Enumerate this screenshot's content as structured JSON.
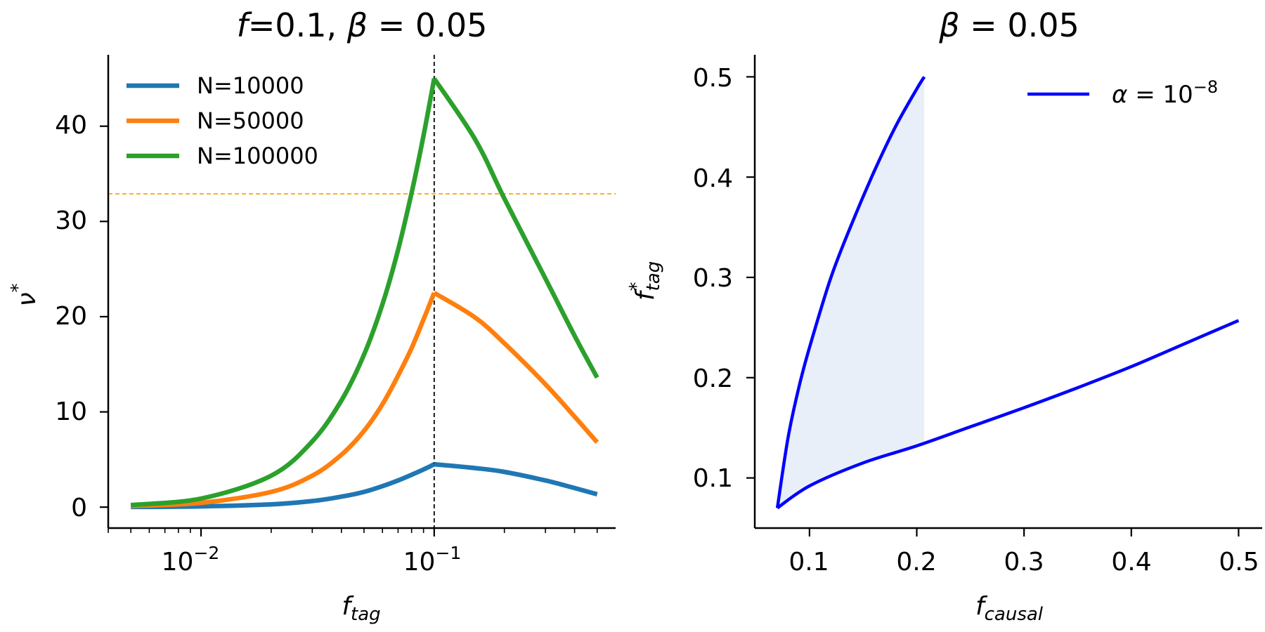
{
  "chart_data": [
    {
      "type": "line",
      "title": {
        "pre": "f",
        "mid": "=0.1, ",
        "greek": "β",
        "post": " = 0.05"
      },
      "xlabel": {
        "base": "f",
        "sub": "tag"
      },
      "ylabel": {
        "base": "ν",
        "sup": "*"
      },
      "x_scale": "log",
      "xlim": [
        0.004,
        0.6
      ],
      "ylim": [
        -2.2,
        47.5
      ],
      "y_ticks": [
        "0",
        "10",
        "20",
        "30",
        "40"
      ],
      "x_ticks": [
        {
          "base": "10",
          "exp": "−2"
        },
        {
          "base": "10",
          "exp": "−1"
        }
      ],
      "vline": {
        "x": 0.1,
        "style": "dashed",
        "color": "#000000"
      },
      "hline": {
        "y": 32.9,
        "style": "dashed",
        "color": "#ffa500"
      },
      "legend_position": "upper-left",
      "series": [
        {
          "name": "N=10000",
          "color": "#1f77b4",
          "points": [
            [
              0.005,
              0.02
            ],
            [
              0.01,
              0.08
            ],
            [
              0.02,
              0.29
            ],
            [
              0.03,
              0.64
            ],
            [
              0.04,
              1.1
            ],
            [
              0.05,
              1.6
            ],
            [
              0.06,
              2.2
            ],
            [
              0.07,
              2.8
            ],
            [
              0.08,
              3.4
            ],
            [
              0.09,
              3.95
            ],
            [
              0.1,
              4.5
            ],
            [
              0.15,
              4.1
            ],
            [
              0.2,
              3.7
            ],
            [
              0.3,
              2.8
            ],
            [
              0.4,
              2.0
            ],
            [
              0.5,
              1.35
            ]
          ]
        },
        {
          "name": "N=50000",
          "color": "#ff7f0e",
          "points": [
            [
              0.005,
              0.11
            ],
            [
              0.01,
              0.45
            ],
            [
              0.02,
              1.6
            ],
            [
              0.03,
              3.3
            ],
            [
              0.04,
              5.5
            ],
            [
              0.05,
              8.0
            ],
            [
              0.06,
              10.8
            ],
            [
              0.07,
              13.8
            ],
            [
              0.08,
              16.7
            ],
            [
              0.09,
              19.7
            ],
            [
              0.1,
              22.5
            ],
            [
              0.15,
              19.9
            ],
            [
              0.2,
              17.2
            ],
            [
              0.3,
              12.9
            ],
            [
              0.4,
              9.5
            ],
            [
              0.5,
              6.8
            ]
          ]
        },
        {
          "name": "N=100000",
          "color": "#2ca02c",
          "points": [
            [
              0.005,
              0.22
            ],
            [
              0.01,
              0.9
            ],
            [
              0.02,
              3.3
            ],
            [
              0.03,
              6.9
            ],
            [
              0.04,
              11.2
            ],
            [
              0.05,
              16.0
            ],
            [
              0.06,
              21.3
            ],
            [
              0.07,
              27.0
            ],
            [
              0.08,
              33.0
            ],
            [
              0.09,
              39.0
            ],
            [
              0.1,
              45.0
            ],
            [
              0.15,
              38.6
            ],
            [
              0.2,
              32.4
            ],
            [
              0.3,
              24.0
            ],
            [
              0.4,
              18.0
            ],
            [
              0.5,
              13.6
            ]
          ]
        }
      ]
    },
    {
      "type": "line",
      "title": {
        "greek": "β",
        "post": " = 0.05"
      },
      "xlabel": {
        "base": "f",
        "sub": "causal"
      },
      "ylabel": {
        "base": "f",
        "sup": "*",
        "sub": "tag"
      },
      "xlim": [
        0.049,
        0.522
      ],
      "ylim": [
        0.05,
        0.522
      ],
      "x_ticks": [
        "0.1",
        "0.2",
        "0.3",
        "0.4",
        "0.5"
      ],
      "y_ticks": [
        "0.1",
        "0.2",
        "0.3",
        "0.4",
        "0.5"
      ],
      "legend_position": "upper-right",
      "shaded_region": {
        "color": "#e8eff8",
        "x_range": [
          0.07,
          0.207
        ]
      },
      "series": [
        {
          "name": {
            "greek": "α",
            "mid": " = 10",
            "exp": "−8"
          },
          "color": "#0000ff",
          "upper_branch": [
            [
              0.07,
              0.07
            ],
            [
              0.08,
              0.14
            ],
            [
              0.09,
              0.19
            ],
            [
              0.1,
              0.23
            ],
            [
              0.12,
              0.3
            ],
            [
              0.14,
              0.355
            ],
            [
              0.16,
              0.405
            ],
            [
              0.18,
              0.45
            ],
            [
              0.2,
              0.488
            ],
            [
              0.207,
              0.5
            ]
          ],
          "lower_branch": [
            [
              0.07,
              0.07
            ],
            [
              0.1,
              0.092
            ],
            [
              0.15,
              0.115
            ],
            [
              0.2,
              0.132
            ],
            [
              0.25,
              0.151
            ],
            [
              0.3,
              0.17
            ],
            [
              0.35,
              0.19
            ],
            [
              0.4,
              0.211
            ],
            [
              0.45,
              0.234
            ],
            [
              0.5,
              0.257
            ]
          ]
        }
      ]
    }
  ]
}
